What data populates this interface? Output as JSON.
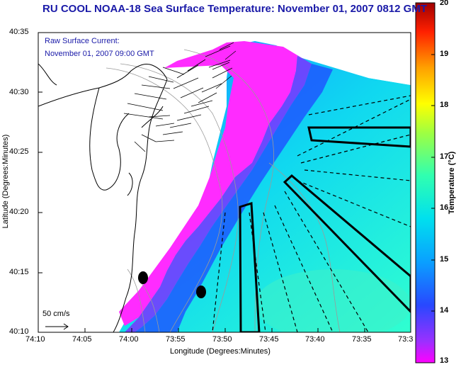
{
  "title": "RU COOL  NOAA-18  Sea Surface Temperature:  November 01, 2007 0812 GMT",
  "overlay": {
    "current_label": "Raw Surface Current:",
    "current_time": "November 01, 2007 09:00 GMT",
    "scale_label": "50 cm/s"
  },
  "axes": {
    "xlabel": "Longitude (Degrees:Minutes)",
    "ylabel": "Latitude (Degrees:Minutes)",
    "xticks": [
      "74:10",
      "74:05",
      "74:00",
      "73:55",
      "73:50",
      "73:45",
      "73:40",
      "73:35",
      "73:3"
    ],
    "yticks": [
      "40:35",
      "40:30",
      "40:25",
      "40:20",
      "40:15",
      "40:10"
    ]
  },
  "colorbar": {
    "label": "Temperature (°C)",
    "ticks": [
      "20",
      "19",
      "18",
      "17",
      "16",
      "15",
      "14",
      "13"
    ],
    "range": [
      13,
      20
    ],
    "colors": [
      "#ff00ff",
      "#7a33ff",
      "#1e50ff",
      "#00b4ff",
      "#00eedd",
      "#6cff6c",
      "#ffff00",
      "#ff9900",
      "#ff2000",
      "#a00000"
    ]
  },
  "colors": {
    "title": "#1a1aa8",
    "land": "#ffffff",
    "coastline": "#000000",
    "bathymetry": "#9a9a9a",
    "vectors": "#000000"
  }
}
